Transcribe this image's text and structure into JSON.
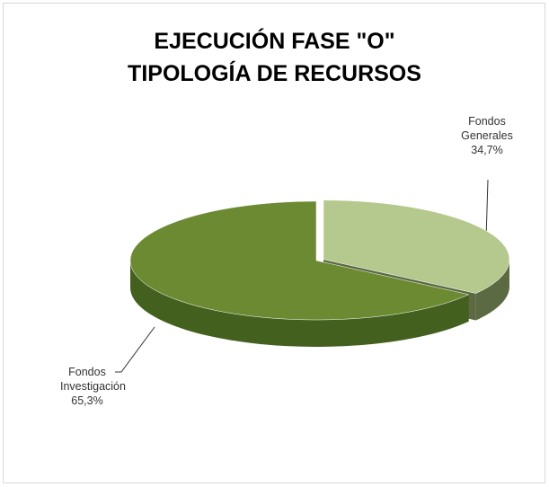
{
  "chart_data": {
    "type": "pie3d",
    "title": [
      "EJECUCIÓN FASE \"O\"",
      "TIPOLOGÍA DE RECURSOS"
    ],
    "categories": [
      "Fondos Generales",
      "Fondos Investigación"
    ],
    "values": [
      34.7,
      65.3
    ],
    "value_labels": [
      "34,7%",
      "65,3%"
    ],
    "colors": [
      "#b5c98e",
      "#6b8a32"
    ],
    "side_colors": [
      "#5b6a43",
      "#44601f"
    ]
  }
}
